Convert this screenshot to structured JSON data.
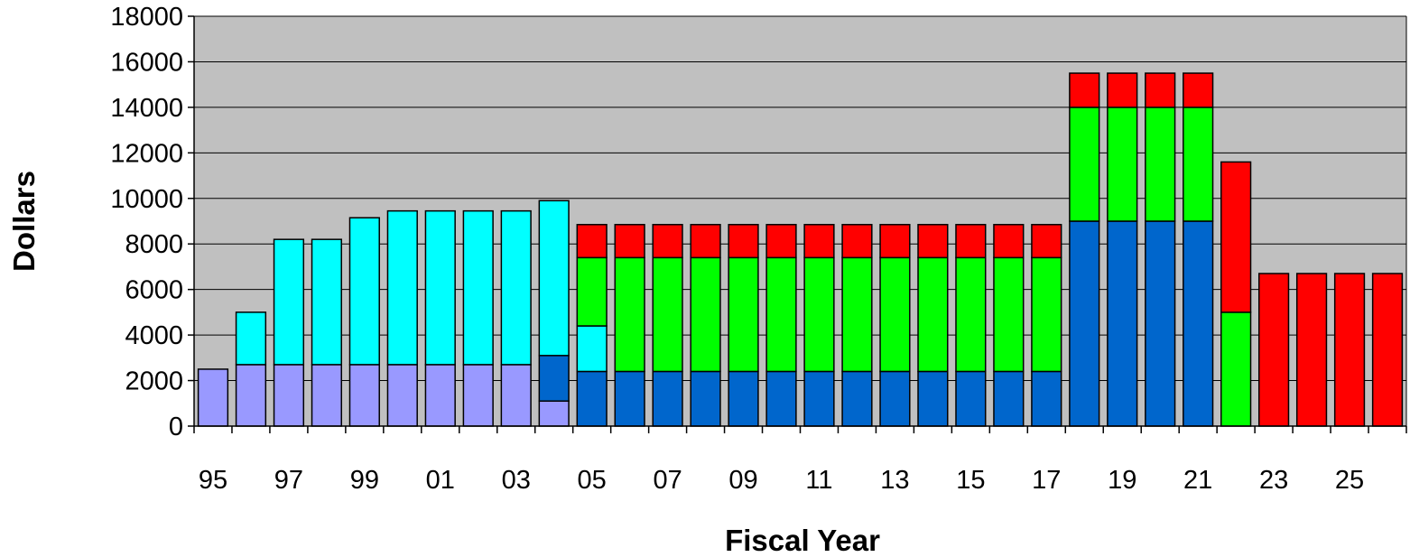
{
  "chart_data": {
    "type": "bar",
    "stacked": true,
    "title": "",
    "xlabel": "Fiscal Year",
    "ylabel": "Dollars",
    "ylim": [
      0,
      18000
    ],
    "yticks": [
      0,
      2000,
      4000,
      6000,
      8000,
      10000,
      12000,
      14000,
      16000,
      18000
    ],
    "grid": true,
    "legend": "none",
    "colors": {
      "plot_background": "#c0c0c0",
      "periwinkle": "#9999ff",
      "cyan": "#00ffff",
      "blue": "#0066cc",
      "green": "#00ff00",
      "red": "#ff0000"
    },
    "categories": [
      "95",
      "96",
      "97",
      "98",
      "99",
      "00",
      "01",
      "02",
      "03",
      "04",
      "05",
      "06",
      "07",
      "08",
      "09",
      "10",
      "11",
      "12",
      "13",
      "14",
      "15",
      "16",
      "17",
      "18",
      "19",
      "20",
      "21",
      "22",
      "23",
      "24",
      "25",
      "26"
    ],
    "x_tick_labels": [
      "95",
      "97",
      "99",
      "01",
      "03",
      "05",
      "07",
      "09",
      "11",
      "13",
      "15",
      "17",
      "19",
      "21",
      "23",
      "25"
    ],
    "series": [
      {
        "color": "periwinkle",
        "values": [
          2500,
          2700,
          2700,
          2700,
          2700,
          2700,
          2700,
          2700,
          2700,
          1100,
          0,
          0,
          0,
          0,
          0,
          0,
          0,
          0,
          0,
          0,
          0,
          0,
          0,
          0,
          0,
          0,
          0,
          0,
          0,
          0,
          0,
          0
        ]
      },
      {
        "color": "blue",
        "values": [
          0,
          0,
          0,
          0,
          0,
          0,
          0,
          0,
          0,
          2000,
          2400,
          2400,
          2400,
          2400,
          2400,
          2400,
          2400,
          2400,
          2400,
          2400,
          2400,
          2400,
          2400,
          9000,
          9000,
          9000,
          9000,
          0,
          0,
          0,
          0,
          0
        ]
      },
      {
        "color": "cyan",
        "values": [
          0,
          2300,
          5500,
          5500,
          6450,
          6750,
          6750,
          6750,
          6750,
          6800,
          2000,
          0,
          0,
          0,
          0,
          0,
          0,
          0,
          0,
          0,
          0,
          0,
          0,
          0,
          0,
          0,
          0,
          0,
          0,
          0,
          0,
          0
        ]
      },
      {
        "color": "green",
        "values": [
          0,
          0,
          0,
          0,
          0,
          0,
          0,
          0,
          0,
          0,
          3000,
          5000,
          5000,
          5000,
          5000,
          5000,
          5000,
          5000,
          5000,
          5000,
          5000,
          5000,
          5000,
          5000,
          5000,
          5000,
          5000,
          5000,
          0,
          0,
          0,
          0
        ]
      },
      {
        "color": "red",
        "values": [
          0,
          0,
          0,
          0,
          0,
          0,
          0,
          0,
          0,
          0,
          1450,
          1450,
          1450,
          1450,
          1450,
          1450,
          1450,
          1450,
          1450,
          1450,
          1450,
          1450,
          1450,
          1500,
          1500,
          1500,
          1500,
          6600,
          6700,
          6700,
          6700,
          6700
        ]
      }
    ]
  }
}
